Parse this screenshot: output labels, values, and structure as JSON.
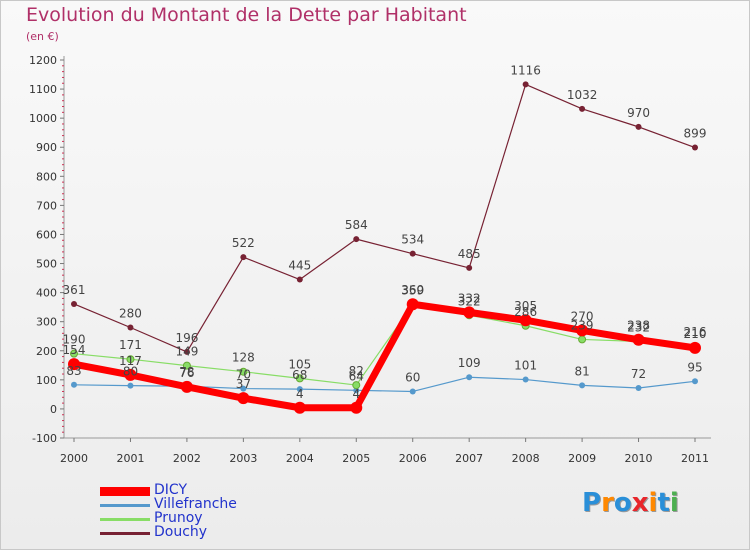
{
  "title": "Evolution du Montant de la Dette par Habitant",
  "subtitle": "(en €)",
  "logo": {
    "text": "Proxiti",
    "letters": [
      "P",
      "r",
      "o",
      "x",
      "i",
      "t",
      "i"
    ],
    "colors": [
      "#2a8fd8",
      "#ff8800",
      "#2a8fd8",
      "#e8262b",
      "#ff8800",
      "#2a8fd8",
      "#4caf50"
    ]
  },
  "chart_data": {
    "type": "line",
    "title": "Evolution du Montant de la Dette par Habitant",
    "subtitle": "(en €)",
    "xlabel": "",
    "ylabel": "",
    "x": [
      2000,
      2001,
      2002,
      2003,
      2004,
      2005,
      2006,
      2007,
      2008,
      2009,
      2010,
      2011
    ],
    "ylim": [
      -100,
      1200
    ],
    "yticks": [
      -100,
      0,
      100,
      200,
      300,
      400,
      500,
      600,
      700,
      800,
      900,
      1000,
      1100,
      1200
    ],
    "grid": false,
    "legend_position": "bottom-left",
    "series": [
      {
        "name": "DICY",
        "color": "#ff0000",
        "values": [
          154,
          117,
          76,
          37,
          4,
          4,
          360,
          332,
          305,
          270,
          238,
          210
        ]
      },
      {
        "name": "Villefranche",
        "color": "#5599cc",
        "values": [
          83,
          80,
          78,
          70,
          68,
          64,
          60,
          109,
          101,
          81,
          72,
          95
        ]
      },
      {
        "name": "Prunoy",
        "color": "#88dd66",
        "values": [
          190,
          171,
          149,
          128,
          105,
          82,
          359,
          322,
          286,
          239,
          232,
          216
        ]
      },
      {
        "name": "Douchy",
        "color": "#772233",
        "values": [
          361,
          280,
          196,
          522,
          445,
          584,
          534,
          485,
          1116,
          1032,
          970,
          899
        ]
      }
    ]
  }
}
